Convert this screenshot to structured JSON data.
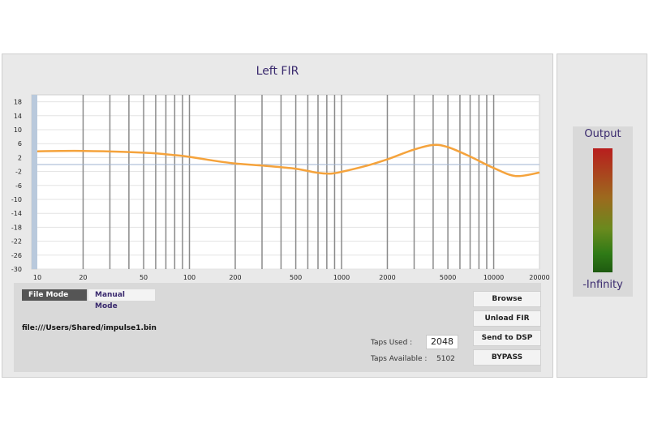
{
  "chart_title": "Left FIR",
  "chart_data": {
    "type": "line",
    "xscale": "log",
    "xlim": [
      10,
      20000
    ],
    "ylim": [
      -30,
      20
    ],
    "y_ticks": [
      18,
      14,
      10,
      6,
      2,
      -2,
      -6,
      -10,
      -14,
      -18,
      -22,
      -26,
      -30
    ],
    "x_ticks": [
      10,
      20,
      50,
      100,
      200,
      500,
      1000,
      2000,
      5000,
      10000,
      20000
    ],
    "x_tick_labels": [
      "10",
      "20",
      "50",
      "100",
      "200",
      "500",
      "1000",
      "2000",
      "5000",
      "10000",
      "20000"
    ],
    "markers": [
      20,
      30,
      40,
      50,
      60,
      70,
      80,
      90,
      100,
      200,
      300,
      400,
      500,
      600,
      700,
      800,
      900,
      1000,
      2000,
      3000,
      4000,
      5000,
      6000,
      7000,
      8000,
      9000,
      10000
    ],
    "reference_line": 0,
    "series": [
      {
        "color": "#f5a33c",
        "x": [
          10,
          20,
          50,
          80,
          100,
          150,
          200,
          300,
          500,
          700,
          850,
          1000,
          1500,
          2000,
          3000,
          4000,
          5000,
          7000,
          10000,
          14000,
          20000
        ],
        "y": [
          3.8,
          3.9,
          3.4,
          2.7,
          2.2,
          1.0,
          0.3,
          -0.3,
          -1.2,
          -2.4,
          -2.6,
          -2.1,
          -0.2,
          1.5,
          4.3,
          5.6,
          5.0,
          2.3,
          -1.0,
          -3.3,
          -2.3
        ]
      }
    ]
  },
  "modes": {
    "file_mode": "File Mode",
    "manual_mode": "Manual Mode"
  },
  "file_path": "file:///Users/Shared/impulse1.bin",
  "taps": {
    "used_label": "Taps Used :",
    "used_value": "2048",
    "available_label": "Taps Available :",
    "available_value": "5102"
  },
  "buttons": {
    "browse": "Browse",
    "unload": "Unload FIR",
    "send": "Send to DSP",
    "bypass": "BYPASS"
  },
  "meter": {
    "label": "Output",
    "value": "-Infinity"
  }
}
